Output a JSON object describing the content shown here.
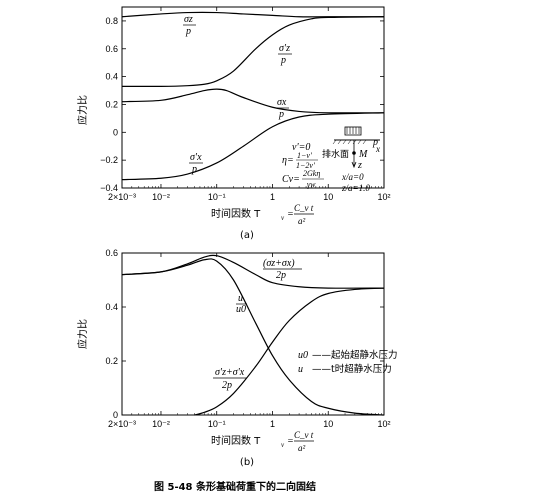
{
  "chart_data": [
    {
      "type": "line",
      "panel_label": "(a)",
      "ylabel": "应力比",
      "xlabel": "时间因数 T",
      "xlabel_sub": "v",
      "xlabel_eq": "=",
      "xlabel_frac_num": "C_v t",
      "xlabel_frac_den": "a²",
      "xscale": "log",
      "xlim": [
        0.002,
        100
      ],
      "ylim": [
        -0.4,
        0.9
      ],
      "xticks": [
        {
          "v": 0.002,
          "label": "2×10⁻³"
        },
        {
          "v": 0.01,
          "label": "10⁻²"
        },
        {
          "v": 0.1,
          "label": "10⁻¹"
        },
        {
          "v": 1,
          "label": "1"
        },
        {
          "v": 10,
          "label": "10"
        },
        {
          "v": 100,
          "label": "10²"
        }
      ],
      "yticks": [
        {
          "v": -0.4,
          "label": "−0.4"
        },
        {
          "v": -0.2,
          "label": "−0.2"
        },
        {
          "v": 0,
          "label": "0"
        },
        {
          "v": 0.2,
          "label": "0.2"
        },
        {
          "v": 0.4,
          "label": "0.4"
        },
        {
          "v": 0.6,
          "label": "0.6"
        },
        {
          "v": 0.8,
          "label": "0.8"
        }
      ],
      "series": [
        {
          "name": "σz/p",
          "x": [
            0.002,
            0.01,
            0.03,
            0.1,
            0.3,
            1,
            3,
            10,
            100
          ],
          "y": [
            0.83,
            0.85,
            0.86,
            0.86,
            0.85,
            0.84,
            0.83,
            0.83,
            0.83
          ]
        },
        {
          "name": "σ'z/p",
          "x": [
            0.002,
            0.01,
            0.03,
            0.06,
            0.1,
            0.2,
            0.5,
            1,
            2,
            5,
            10,
            100
          ],
          "y": [
            0.33,
            0.33,
            0.335,
            0.345,
            0.37,
            0.44,
            0.6,
            0.7,
            0.77,
            0.815,
            0.825,
            0.83
          ]
        },
        {
          "name": "σx/p",
          "x": [
            0.002,
            0.01,
            0.03,
            0.06,
            0.1,
            0.15,
            0.3,
            1,
            3,
            10,
            100
          ],
          "y": [
            0.22,
            0.23,
            0.27,
            0.3,
            0.31,
            0.3,
            0.25,
            0.18,
            0.15,
            0.14,
            0.14
          ]
        },
        {
          "name": "σ'x/p",
          "x": [
            0.002,
            0.01,
            0.03,
            0.1,
            0.3,
            1,
            3,
            10,
            100
          ],
          "y": [
            -0.34,
            -0.33,
            -0.3,
            -0.22,
            -0.1,
            0.04,
            0.11,
            0.13,
            0.14
          ]
        }
      ],
      "labels": {
        "s1_num": "σz",
        "s1_den": "p",
        "s2_num": "σ'z",
        "s2_den": "p",
        "s3_num": "σx",
        "s3_den": "p",
        "s4_num": "σ'x",
        "s4_den": "p"
      },
      "annotations": {
        "nu": "ν'=0",
        "eta_pre": "η=",
        "eta_num": "1−ν'",
        "eta_den": "1−2ν'",
        "cv_pre": "Cv=",
        "cv_num": "2Gkη",
        "cv_den": "γw",
        "drain": "排水面",
        "point": "M",
        "z": "z",
        "x": "x",
        "p": "p",
        "xa": "x/a=0",
        "za": "z/a=1.0"
      }
    },
    {
      "type": "line",
      "panel_label": "(b)",
      "ylabel": "应力比",
      "xlabel": "时间因数 T",
      "xlabel_sub": "v",
      "xlabel_eq": "=",
      "xlabel_frac_num": "C_v t",
      "xlabel_frac_den": "a²",
      "xscale": "log",
      "xlim": [
        0.002,
        100
      ],
      "ylim": [
        0,
        0.6
      ],
      "xticks": [
        {
          "v": 0.002,
          "label": "2×10⁻³"
        },
        {
          "v": 0.01,
          "label": "10⁻²"
        },
        {
          "v": 0.1,
          "label": "10⁻¹"
        },
        {
          "v": 1,
          "label": "1"
        },
        {
          "v": 10,
          "label": "10"
        },
        {
          "v": 100,
          "label": "10²"
        }
      ],
      "yticks": [
        {
          "v": 0,
          "label": "0"
        },
        {
          "v": 0.2,
          "label": "0.2"
        },
        {
          "v": 0.4,
          "label": "0.4"
        },
        {
          "v": 0.6,
          "label": "0.6"
        }
      ],
      "series": [
        {
          "name": "(σz+σx)/2p",
          "x": [
            0.002,
            0.01,
            0.03,
            0.06,
            0.1,
            0.2,
            0.5,
            1,
            3,
            10,
            100
          ],
          "y": [
            0.52,
            0.53,
            0.56,
            0.585,
            0.59,
            0.565,
            0.52,
            0.49,
            0.475,
            0.47,
            0.47
          ]
        },
        {
          "name": "u/u0",
          "x": [
            0.002,
            0.01,
            0.03,
            0.06,
            0.1,
            0.2,
            0.5,
            1,
            2,
            5,
            10,
            30,
            100
          ],
          "y": [
            0.52,
            0.53,
            0.555,
            0.575,
            0.57,
            0.5,
            0.34,
            0.22,
            0.13,
            0.05,
            0.025,
            0.007,
            0.0
          ]
        },
        {
          "name": "(σ'z+σ'x)/2p",
          "x": [
            0.04,
            0.06,
            0.1,
            0.2,
            0.5,
            1,
            2,
            5,
            10,
            30,
            100
          ],
          "y": [
            0.0,
            0.01,
            0.03,
            0.08,
            0.18,
            0.27,
            0.35,
            0.42,
            0.45,
            0.465,
            0.47
          ]
        }
      ],
      "labels": {
        "b1": "(σz+σx)",
        "b1_den": "2p",
        "b2_num": "u",
        "b2_den": "u0",
        "b3_num": "σ'z+σ'x",
        "b3_den": "2p"
      },
      "legend": [
        {
          "sym": "u0",
          "text": "——起始超静水压力"
        },
        {
          "sym": "u",
          "text": "——t时超静水压力"
        }
      ]
    }
  ],
  "figure_caption": "图 5-48   条形基础荷重下的二向固结"
}
